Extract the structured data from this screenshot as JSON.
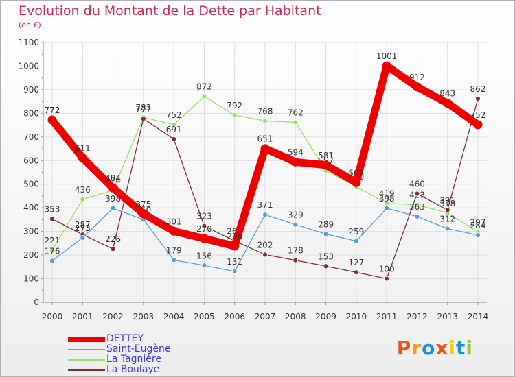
{
  "header": {
    "title": "Evolution du Montant de la Dette par Habitant",
    "subtitle": "(en €)"
  },
  "logo": {
    "text": "Proxiti",
    "colors": [
      "#e8541c",
      "#f0a020",
      "#1e8fd8",
      "#e8541c",
      "#e8d020",
      "#1e8fd8",
      "#8bc53f"
    ]
  },
  "chart_data": {
    "type": "line",
    "x": [
      "2000",
      "2001",
      "2002",
      "2003",
      "2004",
      "2005",
      "2006",
      "2007",
      "2008",
      "2009",
      "2010",
      "2011",
      "2012",
      "2013",
      "2014"
    ],
    "ylim": [
      0,
      1100
    ],
    "yticks": [
      0,
      100,
      200,
      300,
      400,
      500,
      600,
      700,
      800,
      900,
      1000,
      1100
    ],
    "grid": true,
    "legend_position": "bottom-left",
    "series": [
      {
        "name": "La Tagnière",
        "color": "#99dd66",
        "values": [
          221,
          436,
          474,
          783,
          752,
          872,
          792,
          768,
          762,
          557,
          490,
          419,
          413,
          378,
          297
        ]
      },
      {
        "name": "La Boulaye",
        "color": "#7a2e2e",
        "values": [
          353,
          287,
          226,
          777,
          691,
          323,
          260,
          202,
          178,
          153,
          127,
          100,
          460,
          391,
          862
        ]
      },
      {
        "name": "Saint-Eugène",
        "color": "#5b9bd5",
        "values": [
          176,
          273,
          398,
          350,
          179,
          156,
          131,
          371,
          329,
          289,
          259,
          398,
          363,
          312,
          284
        ]
      },
      {
        "name": "DETTEY",
        "color": "#ee0000",
        "values": [
          772,
          611,
          484,
          375,
          301,
          270,
          238,
          651,
          594,
          581,
          507,
          1001,
          912,
          843,
          752
        ]
      }
    ],
    "legend_order": [
      "DETTEY",
      "Saint-Eugène",
      "La Tagnière",
      "La Boulaye"
    ]
  }
}
